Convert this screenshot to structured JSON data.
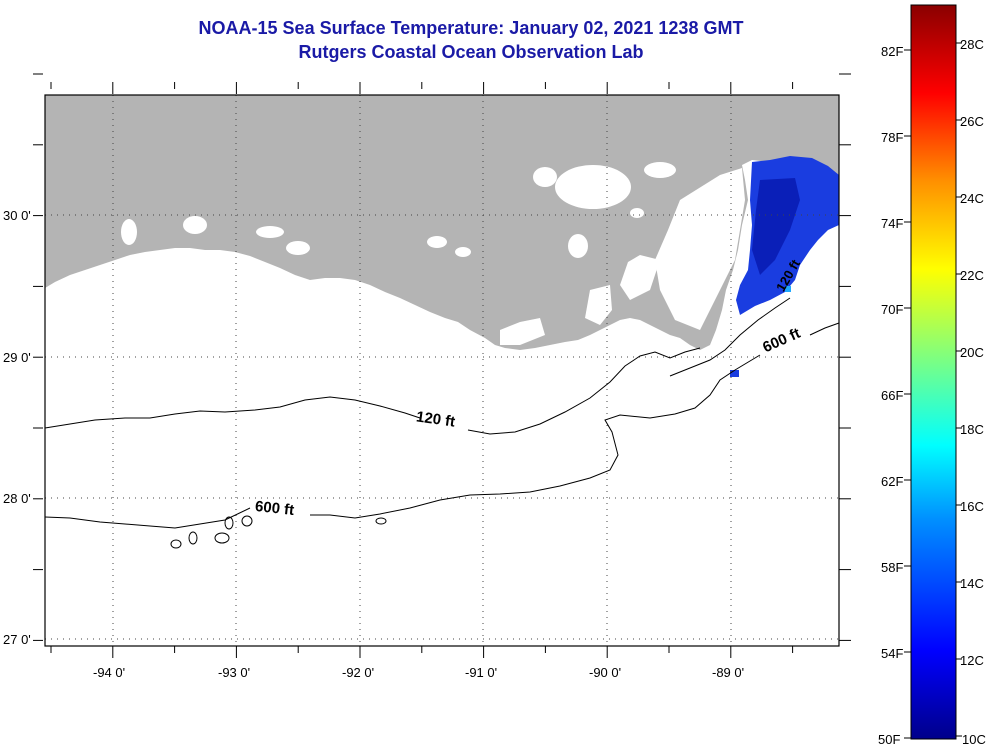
{
  "title": {
    "line1": "NOAA-15 Sea Surface Temperature:  January 02, 2021 1238 GMT",
    "line2": "Rutgers Coastal Ocean Observation Lab"
  },
  "map": {
    "lon_labels": [
      "-94 0'",
      "-93 0'",
      "-92 0'",
      "-91 0'",
      "-90 0'",
      "-89 0'"
    ],
    "lat_labels": [
      "30 0'",
      "29 0'",
      "28 0'",
      "27 0'"
    ],
    "contour_labels": [
      "120 ft",
      "600 ft",
      "600 ft",
      "120 ft"
    ],
    "colors": {
      "land": "#b4b4b4",
      "ocean_nodata": "#ffffff",
      "sst_patch": "#1a3de0"
    }
  },
  "colorbar": {
    "fahrenheit_labels": [
      "82F",
      "78F",
      "74F",
      "70F",
      "66F",
      "62F",
      "58F",
      "54F",
      "50F"
    ],
    "celsius_labels": [
      "28C",
      "26C",
      "24C",
      "22C",
      "20C",
      "18C",
      "16C",
      "14C",
      "12C",
      "10C"
    ],
    "range_c": [
      10,
      29
    ]
  }
}
